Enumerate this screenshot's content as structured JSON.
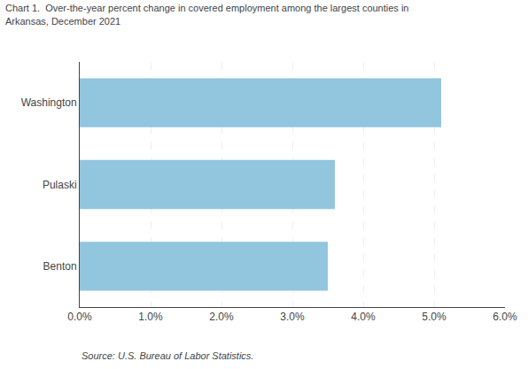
{
  "chart_data": {
    "type": "bar",
    "orientation": "horizontal",
    "title": "Chart 1.  Over-the-year percent change in covered employment among the largest counties in",
    "subtitle": "Arkansas, December 2021",
    "categories": [
      "Benton",
      "Pulaski",
      "Washington"
    ],
    "values": [
      0.035,
      0.036,
      0.051
    ],
    "color": "#92C5DE",
    "xlim": [
      0.0,
      0.06
    ],
    "xticks": [
      {
        "value": 0.0,
        "label": "0.0%"
      },
      {
        "value": 0.01,
        "label": "1.0%"
      },
      {
        "value": 0.02,
        "label": "2.0%"
      },
      {
        "value": 0.03,
        "label": "3.0%"
      },
      {
        "value": 0.04,
        "label": "4.0%"
      },
      {
        "value": 0.05,
        "label": "5.0%"
      },
      {
        "value": 0.06,
        "label": "6.0%"
      }
    ],
    "grid": true,
    "annotations": [
      "Source: U.S. Bureau of Labor Statistics."
    ]
  }
}
